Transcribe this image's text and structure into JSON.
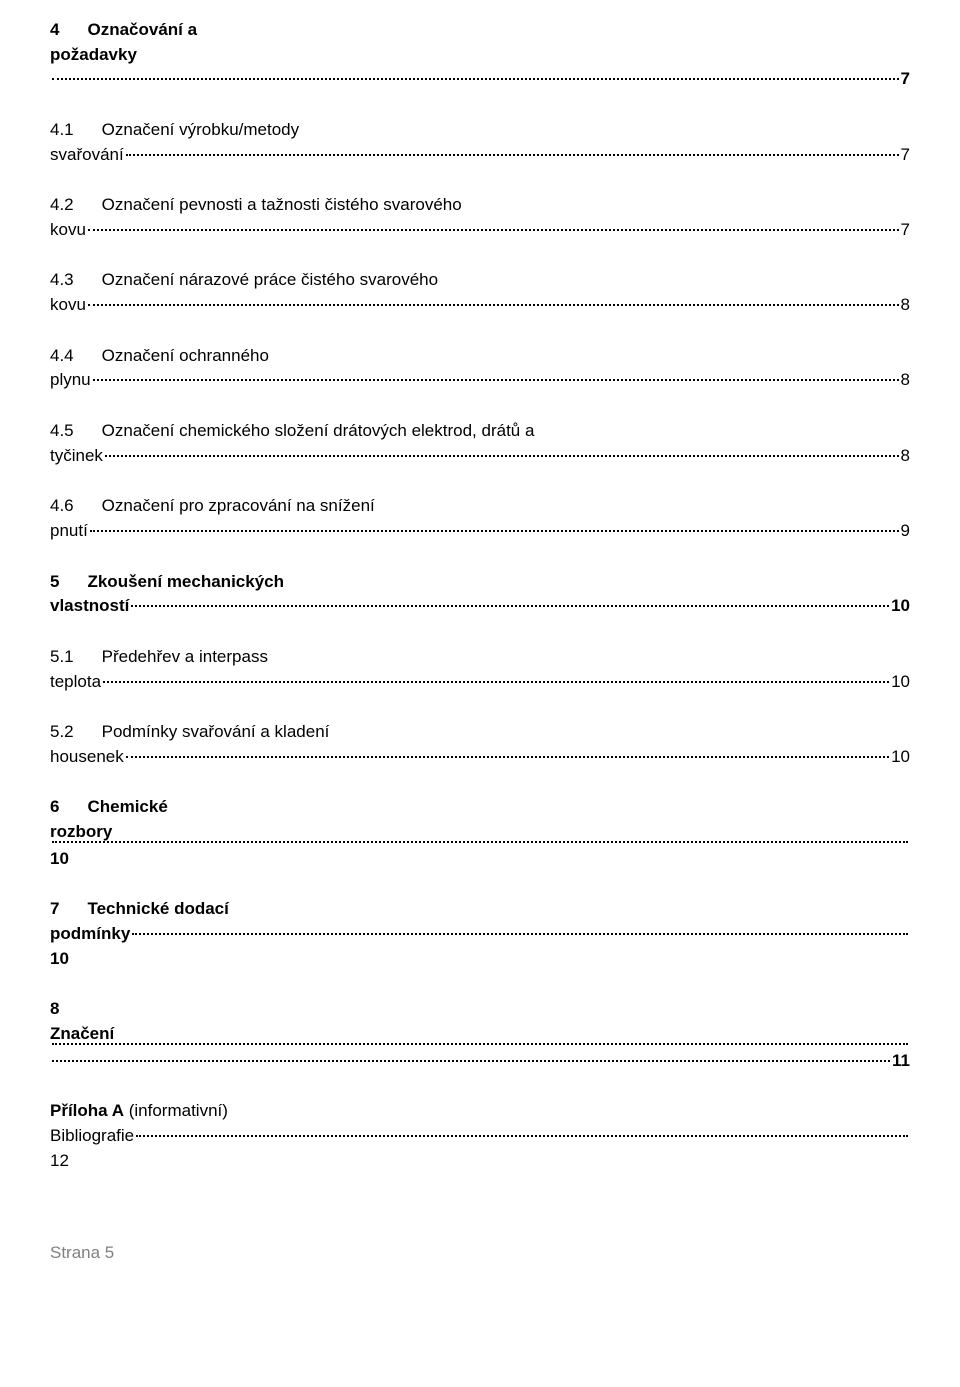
{
  "toc": [
    {
      "num": "4",
      "titleL1": "Označování a",
      "titleL2": "požadavky",
      "page": "7",
      "bold": true,
      "compound": true,
      "prefixOnDotline": ""
    },
    {
      "num": "4.1",
      "titleL1": "Označení výrobku/metody",
      "titleL2": "svařování",
      "page": "7",
      "bold": false,
      "compound": true,
      "prefixOnDotline": "svařování"
    },
    {
      "num": "4.2",
      "titleL1": "Označení pevnosti a tažnosti čistého svarového",
      "titleL2": "kovu",
      "page": "7",
      "bold": false,
      "compound": true,
      "prefixOnDotline": "kovu"
    },
    {
      "num": "4.3",
      "titleL1": "Označení nárazové práce čistého svarového",
      "titleL2": "kovu",
      "page": "8",
      "bold": false,
      "compound": true,
      "prefixOnDotline": "kovu"
    },
    {
      "num": "4.4",
      "titleL1": "Označení ochranného",
      "titleL2": "plynu",
      "page": "8",
      "bold": false,
      "compound": true,
      "prefixOnDotline": "plynu"
    },
    {
      "num": "4.5",
      "titleL1": "Označení chemického složení drátových elektrod, drátů a",
      "titleL2": "tyčinek",
      "page": "8",
      "bold": false,
      "compound": true,
      "prefixOnDotline": "tyčinek"
    },
    {
      "num": "4.6",
      "titleL1": "Označení pro zpracování na snížení",
      "titleL2": "pnutí",
      "page": "9",
      "bold": false,
      "compound": true,
      "prefixOnDotline": "pnutí"
    },
    {
      "num": "5",
      "titleL1": "Zkoušení mechanických",
      "titleL2": "vlastností",
      "page": "10",
      "bold": true,
      "compound": true,
      "prefixOnDotline": "vlastností"
    },
    {
      "num": "5.1",
      "titleL1": "Předehřev a interpass",
      "titleL2": "teplota",
      "page": "10",
      "bold": false,
      "compound": true,
      "prefixOnDotline": "teplota"
    },
    {
      "num": "5.2",
      "titleL1": "Podmínky svařování a kladení",
      "titleL2": "housenek",
      "page": "10",
      "bold": false,
      "compound": true,
      "prefixOnDotline": "housenek"
    },
    {
      "num": "6",
      "titleL1": "Chemické",
      "titleL2": "rozbory",
      "page": "10",
      "bold": true,
      "compound": true,
      "prefixOnDotline": "",
      "pageOnNewLine": true
    },
    {
      "num": "7",
      "titleL1": "Technické dodací",
      "titleL2": "podmínky",
      "page": "10",
      "bold": true,
      "compound": true,
      "prefixOnDotline": "podmínky",
      "pageOnNewLine": true
    },
    {
      "num": "8",
      "titleL1": "",
      "titleL2": "Značení",
      "page": "11",
      "bold": true,
      "compound": true,
      "prefixOnDotline": "",
      "doubleDotLeader": true
    }
  ],
  "annex": {
    "label": "Příloha A",
    "note": "(informativní)",
    "titleL2": "Bibliografie",
    "page": "12"
  },
  "footer": "Strana 5",
  "colors": {
    "text": "#000000",
    "footer": "#808080",
    "background": "#ffffff"
  },
  "typography": {
    "body_fontsize_pt": 13,
    "font_family": "Verdana"
  }
}
